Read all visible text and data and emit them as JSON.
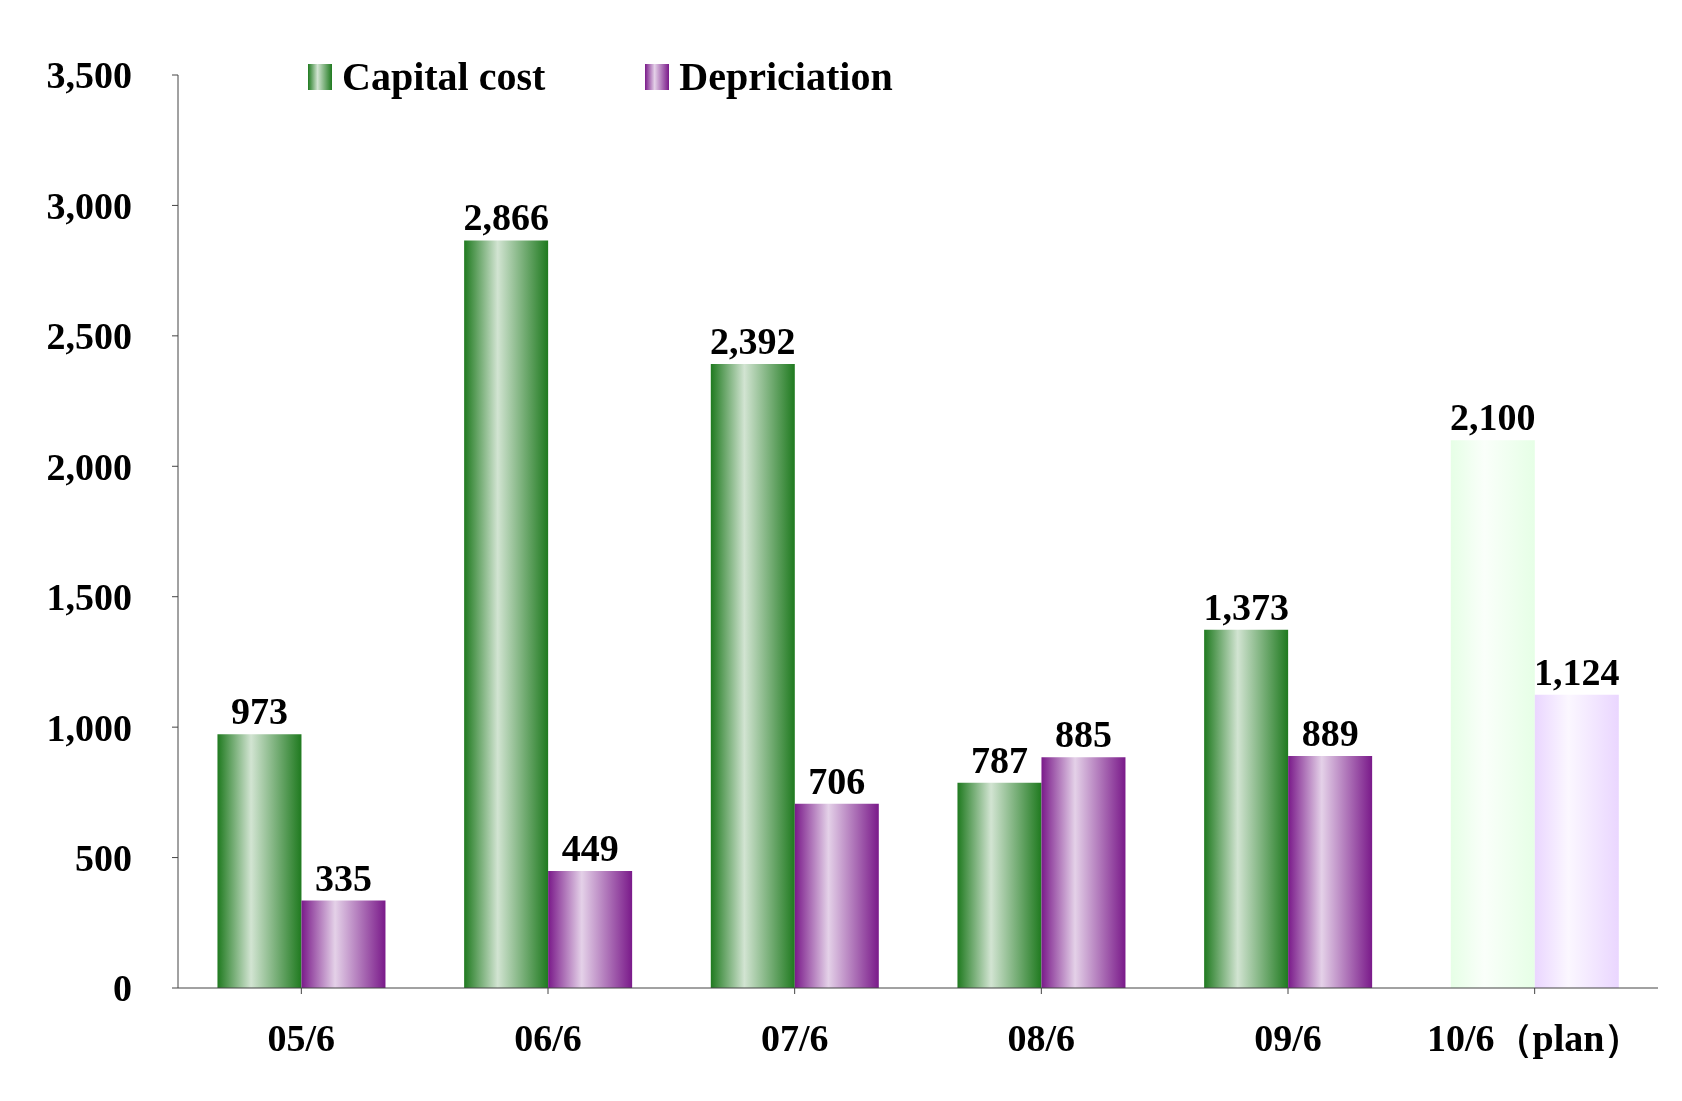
{
  "chart_data": {
    "type": "bar",
    "categories": [
      "05/6",
      "06/6",
      "07/6",
      "08/6",
      "09/6",
      "10/6（plan）"
    ],
    "series": [
      {
        "name": "Capital cost",
        "color": "#1f7a1f",
        "colors": [
          "#1f7a1f",
          "#1f7a1f",
          "#1f7a1f",
          "#1f7a1f",
          "#1f7a1f",
          "#e6ffe6"
        ],
        "values": [
          973,
          2866,
          2392,
          787,
          1373,
          2100
        ],
        "value_labels": [
          "973",
          "2,866",
          "2,392",
          "787",
          "1,373",
          "2,100"
        ]
      },
      {
        "name": "Depriciation",
        "color": "#7a1a8a",
        "colors": [
          "#7a1a8a",
          "#7a1a8a",
          "#7a1a8a",
          "#7a1a8a",
          "#7a1a8a",
          "#ead6ff"
        ],
        "values": [
          335,
          449,
          706,
          885,
          889,
          1124
        ],
        "value_labels": [
          "335",
          "449",
          "706",
          "885",
          "889",
          "1,124"
        ]
      }
    ],
    "ylim": [
      0,
      3500
    ],
    "yticks": [
      0,
      500,
      {
        "value": 1000,
        "label": "1,000"
      },
      {
        "value": 1500,
        "label": "1,500"
      },
      {
        "value": 2000,
        "label": "2,000"
      },
      {
        "value": 2500,
        "label": "2,500"
      },
      {
        "value": 3000,
        "label": "3,000"
      },
      {
        "value": 3500,
        "label": "3,500"
      }
    ],
    "grid": false,
    "legend": "top left"
  }
}
